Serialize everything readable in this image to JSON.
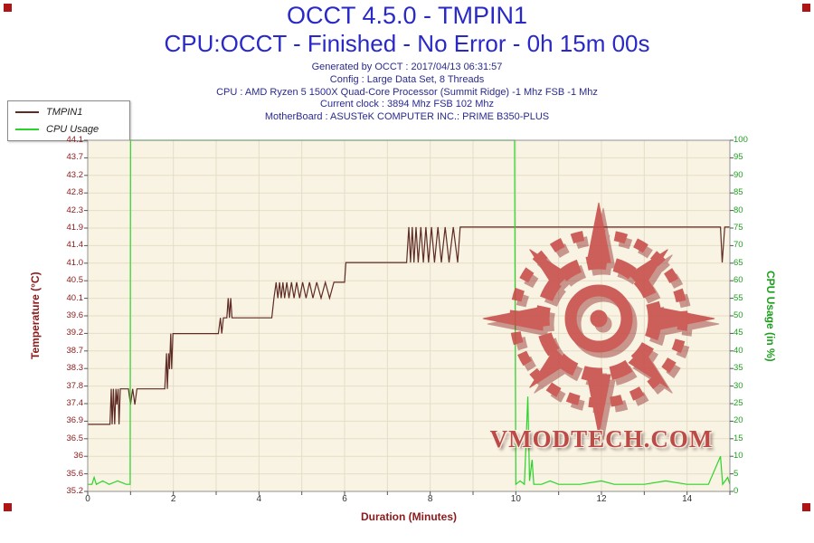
{
  "header": {
    "title": "OCCT 4.5.0 - TMPIN1",
    "subtitle": "CPU:OCCT - Finished - No Error - 0h 15m 00s",
    "info_lines": [
      "Generated by OCCT : 2017/04/13 06:31:57",
      "Config : Large Data Set, 8 Threads",
      "CPU : AMD Ryzen 5 1500X Quad-Core Processor (Summit Ridge) -1 Mhz FSB -1 Mhz",
      "Current clock : 3894 Mhz FSB 102 Mhz",
      "MotherBoard : ASUSTeK COMPUTER INC.: PRIME B350-PLUS"
    ]
  },
  "watermark": {
    "text": "VMODTECH.COM",
    "color": "#bc4a46"
  },
  "colors": {
    "title": "#2929c8",
    "info": "#2a2a8f",
    "temp_axis": "#8b1a1a",
    "cpu_axis": "#1fa01f",
    "plot_bg": "#f8f3e2",
    "grid": "#e5ddc6",
    "emblem": "#c84b48"
  },
  "chart_data": {
    "type": "line",
    "title": "OCCT 4.5.0 - TMPIN1",
    "xlabel": "Duration (Minutes)",
    "ylabel_left": "Temperature (°C)",
    "ylabel_right": "CPU Usage (in %)",
    "xlim": [
      0,
      15
    ],
    "ylim_left": [
      35.2,
      44.1
    ],
    "ylim_right": [
      0,
      100
    ],
    "grid": true,
    "legend_position": "top-left",
    "x_tick_marks": [
      0,
      1,
      2,
      3,
      4,
      5,
      6,
      7,
      8,
      9,
      10,
      11,
      12,
      13,
      14,
      15
    ],
    "x_tick_labels": [
      {
        "value": 0,
        "label": "0"
      },
      {
        "value": 2,
        "label": "2"
      },
      {
        "value": 4,
        "label": "4"
      },
      {
        "value": 6,
        "label": "6"
      },
      {
        "value": 8,
        "label": "8"
      },
      {
        "value": 10,
        "label": "10"
      },
      {
        "value": 12,
        "label": "12"
      },
      {
        "value": 14,
        "label": "14"
      }
    ],
    "y_ticks_left": [
      "44.1",
      "43.7",
      "43.2",
      "42.8",
      "42.3",
      "41.9",
      "41.4",
      "41.0",
      "40.5",
      "40.1",
      "39.6",
      "39.2",
      "38.7",
      "38.3",
      "37.8",
      "37.4",
      "36.9",
      "36.5",
      "36",
      "35.6",
      "35.2"
    ],
    "y_ticks_right": [
      "100",
      "95",
      "90",
      "85",
      "80",
      "75",
      "70",
      "65",
      "60",
      "55",
      "50",
      "45",
      "40",
      "35",
      "30",
      "25",
      "20",
      "15",
      "10",
      "5",
      "0"
    ],
    "series": [
      {
        "name": "TMPIN1",
        "axis": "left",
        "color": "#5e2b25",
        "points": [
          [
            0,
            36.9
          ],
          [
            0.52,
            36.9
          ],
          [
            0.55,
            37.8
          ],
          [
            0.57,
            36.9
          ],
          [
            0.6,
            37.8
          ],
          [
            0.63,
            36.9
          ],
          [
            0.66,
            37.8
          ],
          [
            0.68,
            37.4
          ],
          [
            0.71,
            37.8
          ],
          [
            0.73,
            36.9
          ],
          [
            0.76,
            37.8
          ],
          [
            0.95,
            37.8
          ],
          [
            1,
            37.4
          ],
          [
            1.05,
            37.8
          ],
          [
            1.1,
            37.4
          ],
          [
            1.15,
            37.8
          ],
          [
            1.8,
            37.8
          ],
          [
            1.84,
            38.7
          ],
          [
            1.86,
            37.8
          ],
          [
            1.89,
            38.7
          ],
          [
            1.91,
            38.3
          ],
          [
            1.94,
            39.2
          ],
          [
            1.96,
            38.3
          ],
          [
            1.99,
            39.2
          ],
          [
            3.05,
            39.2
          ],
          [
            3.1,
            39.6
          ],
          [
            3.13,
            39.2
          ],
          [
            3.17,
            39.6
          ],
          [
            3.25,
            39.6
          ],
          [
            3.28,
            40.1
          ],
          [
            3.31,
            39.6
          ],
          [
            3.34,
            40.1
          ],
          [
            3.37,
            39.6
          ],
          [
            4.3,
            39.6
          ],
          [
            4.35,
            40.1
          ],
          [
            4.4,
            40.5
          ],
          [
            4.44,
            40.1
          ],
          [
            4.48,
            40.5
          ],
          [
            4.52,
            40.1
          ],
          [
            4.56,
            40.5
          ],
          [
            4.6,
            40.1
          ],
          [
            4.65,
            40.5
          ],
          [
            4.7,
            40.1
          ],
          [
            4.76,
            40.5
          ],
          [
            4.82,
            40.1
          ],
          [
            4.88,
            40.5
          ],
          [
            4.95,
            40.1
          ],
          [
            5.02,
            40.5
          ],
          [
            5.1,
            40.1
          ],
          [
            5.18,
            40.5
          ],
          [
            5.26,
            40.1
          ],
          [
            5.35,
            40.5
          ],
          [
            5.45,
            40.1
          ],
          [
            5.55,
            40.5
          ],
          [
            5.65,
            40.1
          ],
          [
            5.75,
            40.5
          ],
          [
            6,
            40.5
          ],
          [
            6.03,
            41
          ],
          [
            7.45,
            41
          ],
          [
            7.5,
            41.9
          ],
          [
            7.54,
            41
          ],
          [
            7.58,
            41.9
          ],
          [
            7.62,
            41
          ],
          [
            7.67,
            41.9
          ],
          [
            7.72,
            41
          ],
          [
            7.78,
            41.9
          ],
          [
            7.84,
            41
          ],
          [
            7.9,
            41.9
          ],
          [
            7.96,
            41
          ],
          [
            8.03,
            41.9
          ],
          [
            8.1,
            41
          ],
          [
            8.18,
            41.9
          ],
          [
            8.26,
            41
          ],
          [
            8.35,
            41.9
          ],
          [
            8.44,
            41
          ],
          [
            8.54,
            41.9
          ],
          [
            8.64,
            41
          ],
          [
            8.7,
            41.9
          ],
          [
            14.78,
            41.9
          ],
          [
            14.82,
            41
          ],
          [
            14.88,
            41.9
          ],
          [
            15,
            41.9
          ]
        ]
      },
      {
        "name": "CPU Usage",
        "axis": "right",
        "color": "#2bd42b",
        "points": [
          [
            0,
            2
          ],
          [
            0.1,
            2
          ],
          [
            0.15,
            4
          ],
          [
            0.2,
            2
          ],
          [
            0.35,
            3
          ],
          [
            0.5,
            2
          ],
          [
            0.7,
            3
          ],
          [
            0.9,
            2
          ],
          [
            0.99,
            2
          ],
          [
            1,
            100
          ],
          [
            9.97,
            100
          ],
          [
            10,
            2
          ],
          [
            10.1,
            3
          ],
          [
            10.2,
            2
          ],
          [
            10.28,
            27
          ],
          [
            10.32,
            3
          ],
          [
            10.38,
            9
          ],
          [
            10.42,
            2
          ],
          [
            10.6,
            2
          ],
          [
            10.8,
            3
          ],
          [
            11,
            2
          ],
          [
            11.5,
            2
          ],
          [
            12,
            3
          ],
          [
            12.3,
            2
          ],
          [
            13,
            2
          ],
          [
            13.5,
            3
          ],
          [
            14,
            2
          ],
          [
            14.5,
            2
          ],
          [
            14.78,
            10
          ],
          [
            14.83,
            2
          ],
          [
            14.95,
            4
          ],
          [
            15,
            2
          ]
        ]
      }
    ]
  }
}
